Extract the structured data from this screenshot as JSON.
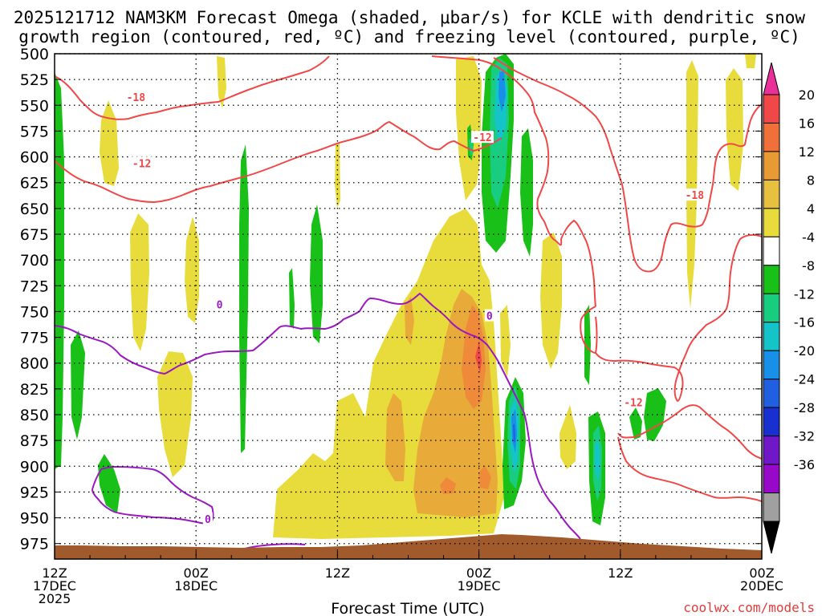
{
  "chart_data": {
    "type": "heatmap",
    "title_line1": "2025121712 NAM3KM Forecast Omega (shaded, μbar/s) for KCLE with dendritic snow",
    "title_line2": "growth region (contoured, red, ºC) and freezing level (contoured, purple, ºC)",
    "xlabel": "Forecast Time (UTC)",
    "credit": "coolwx.com/models",
    "y_ticks": [
      "500",
      "525",
      "550",
      "575",
      "600",
      "625",
      "650",
      "675",
      "700",
      "725",
      "750",
      "775",
      "800",
      "825",
      "850",
      "875",
      "900",
      "925",
      "950",
      "975"
    ],
    "ylim": [
      500,
      990
    ],
    "x_ticks": [
      {
        "hour": 0,
        "l1": "12Z",
        "l2": "17DEC",
        "l3": "2025"
      },
      {
        "hour": 12,
        "l1": "00Z",
        "l2": "18DEC",
        "l3": ""
      },
      {
        "hour": 24,
        "l1": "12Z",
        "l2": "",
        "l3": ""
      },
      {
        "hour": 36,
        "l1": "00Z",
        "l2": "19DEC",
        "l3": ""
      },
      {
        "hour": 48,
        "l1": "12Z",
        "l2": "",
        "l3": ""
      },
      {
        "hour": 60,
        "l1": "00Z",
        "l2": "20DEC",
        "l3": ""
      }
    ],
    "xlim": [
      0,
      60
    ],
    "colorbar": {
      "labels": [
        "20",
        "16",
        "12",
        "8",
        "4",
        "-4",
        "-8",
        "-12",
        "-16",
        "-20",
        "-24",
        "-28",
        "-32",
        "-36"
      ],
      "colors": [
        "#e8329a",
        "#f04848",
        "#f0703a",
        "#e89a34",
        "#e8c040",
        "#e8dc3c",
        "#ffffff",
        "#18c018",
        "#18cc80",
        "#14c4c8",
        "#1890e8",
        "#2060e0",
        "#1830d0",
        "#7018c8",
        "#9808c8",
        "#a0a0a0",
        "#000000"
      ]
    },
    "contour_labels": [
      {
        "text": "-18",
        "hour": 6.9,
        "p": 542,
        "color": "#e84848"
      },
      {
        "text": "-12",
        "hour": 7.4,
        "p": 606,
        "color": "#e84848"
      },
      {
        "text": "-12",
        "hour": 36.3,
        "p": 581,
        "color": "#e84848"
      },
      {
        "text": "-18",
        "hour": 54.3,
        "p": 637,
        "color": "#e84848"
      },
      {
        "text": "-12",
        "hour": 49.1,
        "p": 838,
        "color": "#e84848"
      },
      {
        "text": "0",
        "hour": 14.0,
        "p": 743,
        "color": "#9a18c0"
      },
      {
        "text": "0",
        "hour": 13.0,
        "p": 951,
        "color": "#9a18c0"
      },
      {
        "text": "0",
        "hour": 36.9,
        "p": 754,
        "color": "#9a18c0"
      }
    ]
  }
}
